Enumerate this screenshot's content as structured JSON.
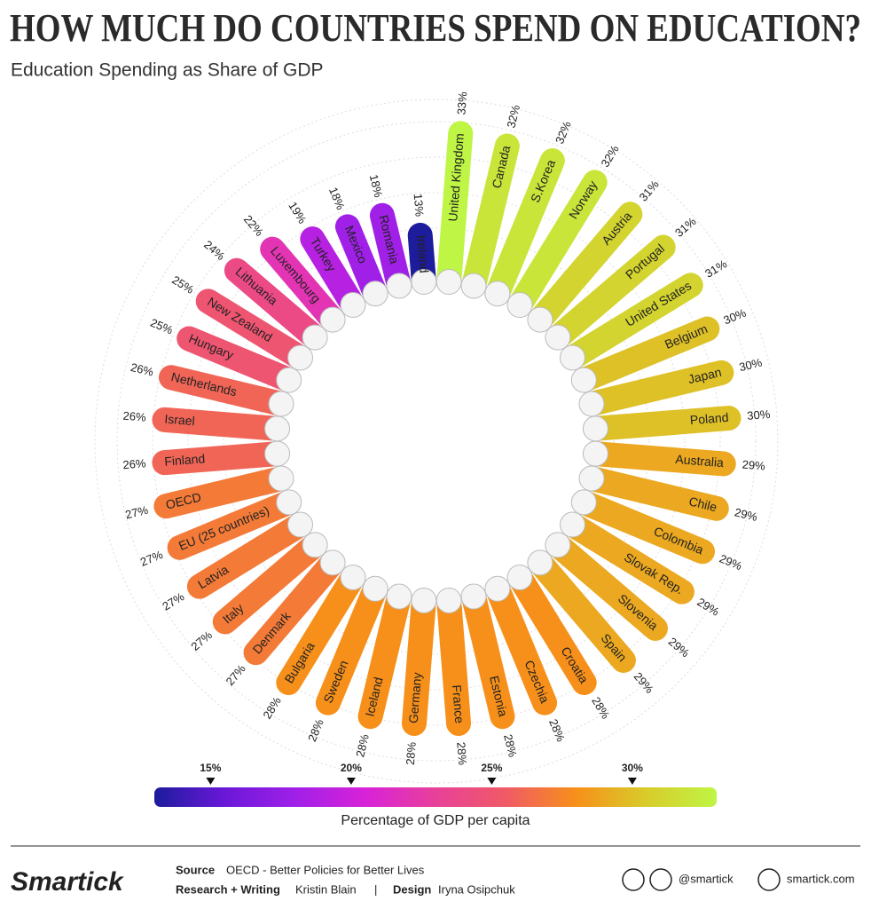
{
  "chart_data": {
    "type": "radial_bar",
    "title": "HOW MUCH DO COUNTRIES SPEND ON EDUCATION?",
    "subtitle": "Education Spending as Share of GDP",
    "categories": [
      "United Kingdom",
      "Canada",
      "S.Korea",
      "Norway",
      "Austria",
      "Portugal",
      "United States",
      "Belgium",
      "Japan",
      "Poland",
      "Australia",
      "Chile",
      "Colombia",
      "Slovak Rep.",
      "Slovenia",
      "Spain",
      "Croatia",
      "Czechia",
      "Estonia",
      "France",
      "Germany",
      "Iceland",
      "Sweden",
      "Bulgaria",
      "Denmark",
      "Italy",
      "Latvia",
      "EU (25 countries)",
      "OECD",
      "Finland",
      "Israel",
      "Netherlands",
      "Hungary",
      "New Zealand",
      "Lithuania",
      "Luxembourg",
      "Turkey",
      "Mexico",
      "Romania",
      "Ireland"
    ],
    "values": [
      33,
      32,
      32,
      32,
      31,
      31,
      31,
      30,
      30,
      30,
      29,
      29,
      29,
      29,
      29,
      29,
      28,
      28,
      28,
      28,
      28,
      28,
      28,
      28,
      27,
      27,
      27,
      27,
      27,
      26,
      26,
      26,
      25,
      25,
      24,
      22,
      19,
      18,
      18,
      13
    ],
    "value_labels": [
      "33%",
      "32%",
      "32%",
      "32%",
      "31%",
      "31%",
      "31%",
      "30%",
      "30%",
      "30%",
      "29%",
      "29%",
      "29%",
      "29%",
      "29%",
      "29%",
      "28%",
      "28%",
      "28%",
      "28%",
      "28%",
      "28%",
      "28%",
      "28%",
      "27%",
      "27%",
      "27%",
      "27%",
      "27%",
      "26%",
      "26%",
      "26%",
      "25%",
      "25%",
      "24%",
      "22%",
      "19%",
      "18%",
      "18%",
      "13%"
    ],
    "colorscale": {
      "colors": [
        "#1c1c9c",
        "#6a18d8",
        "#a020e8",
        "#d822d8",
        "#e8409a",
        "#f05a66",
        "#f7901a",
        "#d8cc2a",
        "#bff544"
      ],
      "lim": [
        13,
        33
      ],
      "ticks": [
        {
          "value": 15,
          "label": "15%"
        },
        {
          "value": 20,
          "label": "20%"
        },
        {
          "value": 25,
          "label": "25%"
        },
        {
          "value": 30,
          "label": "30%"
        }
      ],
      "label": "Percentage of GDP per capita"
    }
  },
  "footer": {
    "logo": "Smartick",
    "source_label": "Source",
    "source": "OECD - Better Policies for Better Lives",
    "research_label": "Research + Writing",
    "research": "Kristin Blain",
    "separator": "|",
    "design_label": "Design",
    "design": "Iryna Osipchuk",
    "social": "@smartick",
    "website": "smartick.com"
  }
}
